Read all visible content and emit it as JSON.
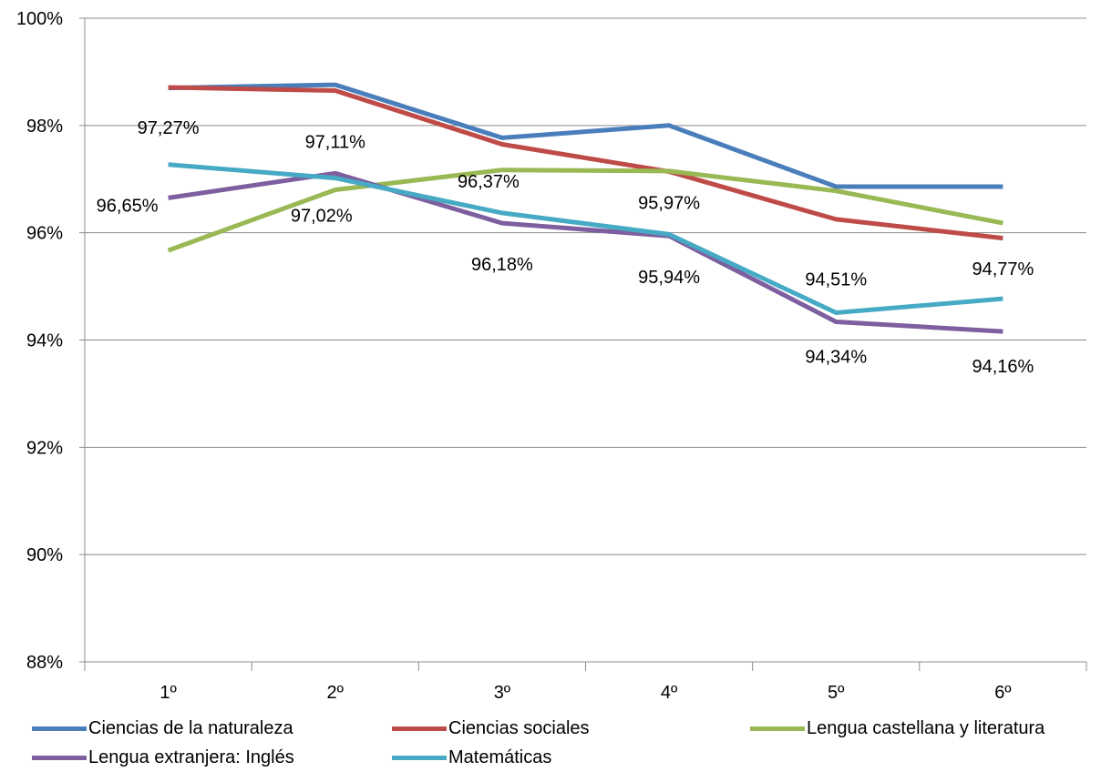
{
  "chart_data": {
    "type": "line",
    "title": "",
    "xlabel": "",
    "ylabel": "",
    "categories": [
      "1º",
      "2º",
      "3º",
      "4º",
      "5º",
      "6º"
    ],
    "ylim": [
      88,
      100
    ],
    "y_ticks": [
      {
        "value": 88,
        "label": "88%"
      },
      {
        "value": 90,
        "label": "90%"
      },
      {
        "value": 92,
        "label": "92%"
      },
      {
        "value": 94,
        "label": "94%"
      },
      {
        "value": 96,
        "label": "96%"
      },
      {
        "value": 98,
        "label": "98%"
      },
      {
        "value": 100,
        "label": "100%"
      }
    ],
    "grid": true,
    "legend_position": "bottom",
    "series": [
      {
        "name": "Ciencias de la naturaleza",
        "color": "#4a7ebb",
        "values": [
          98.7,
          98.76,
          97.77,
          98.0,
          96.86,
          96.86
        ]
      },
      {
        "name": "Ciencias sociales",
        "color": "#be4b48",
        "values": [
          98.71,
          98.65,
          97.65,
          97.14,
          96.25,
          95.9
        ]
      },
      {
        "name": "Lengua castellana y literatura",
        "color": "#98b954",
        "values": [
          95.67,
          96.8,
          97.17,
          97.15,
          96.78,
          96.18
        ]
      },
      {
        "name": "Lengua extranjera: Inglés",
        "color": "#7d5fa0",
        "values": [
          96.65,
          97.11,
          96.18,
          95.94,
          94.34,
          94.16
        ],
        "labels": [
          "96,65%",
          "97,11%",
          "96,18%",
          "95,94%",
          "94,34%",
          "94,16%"
        ]
      },
      {
        "name": "Matemáticas",
        "color": "#46aac5",
        "values": [
          97.27,
          97.02,
          96.37,
          95.97,
          94.51,
          94.77
        ],
        "labels": [
          "97,27%",
          "97,02%",
          "96,37%",
          "95,97%",
          "94,51%",
          "94,77%"
        ]
      }
    ]
  }
}
